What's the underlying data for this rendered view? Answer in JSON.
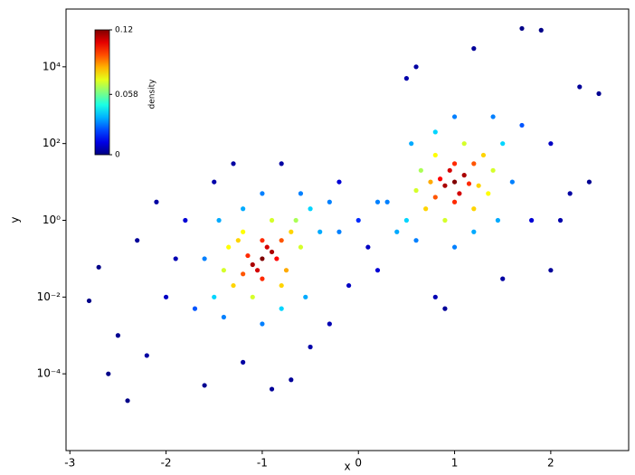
{
  "chart_data": {
    "type": "scatter",
    "x_label": "x",
    "y_label": "y",
    "x": [
      -1,
      -0.9,
      -1.1,
      -0.95,
      -1.05,
      -0.85,
      -1.15,
      -0.8,
      -1.2,
      -1,
      -1,
      -0.7,
      -1.3,
      -0.6,
      -1.4,
      -0.8,
      -1.2,
      -0.9,
      -1.1,
      -0.65,
      -1.35,
      -0.75,
      -1.25,
      -0.5,
      -1.5,
      -0.4,
      -1.6,
      -1.2,
      -0.8,
      -0.3,
      -1.7,
      -1.45,
      -0.55,
      -1,
      -1,
      -0.6,
      -1.4,
      -2,
      -0.2,
      -2.5,
      -1.8,
      -0.5,
      -2.8,
      -2.4,
      -1.5,
      -0.7,
      -2.2,
      -1.2,
      -2.7,
      -1.9,
      -0.3,
      -1.6,
      -0.8,
      -2.6,
      -0.1,
      -1.3,
      -2.1,
      -0.9,
      -2.3,
      1,
      0.9,
      1.1,
      0.95,
      1.05,
      0.85,
      1.15,
      0.8,
      1.2,
      1,
      1,
      0.7,
      1.3,
      0.6,
      1.4,
      0.8,
      1.2,
      0.9,
      1.1,
      0.65,
      1.35,
      0.75,
      1.25,
      0.5,
      1.5,
      0.4,
      1.6,
      1.2,
      0.8,
      0.3,
      1.7,
      1.45,
      0.55,
      1,
      1,
      0.6,
      1.4,
      2,
      0.2,
      2.5,
      1.8,
      0.5,
      1.7,
      1.9,
      2.2,
      1.2,
      2.4,
      0.6,
      0.8,
      2,
      2.3,
      0.1,
      1.5,
      2.1,
      0.9,
      0,
      0.2,
      -0.2
    ],
    "y": [
      0.1,
      0.15,
      0.07,
      0.2,
      0.05,
      0.1,
      0.12,
      0.3,
      0.04,
      0.3,
      0.03,
      0.5,
      0.02,
      0.2,
      0.05,
      0.02,
      0.5,
      1,
      0.01,
      1,
      0.2,
      0.05,
      0.3,
      2,
      0.01,
      0.5,
      0.1,
      2,
      0.005,
      3,
      0.005,
      1,
      0.01,
      5,
      0.002,
      5,
      0.003,
      0.01,
      10,
      0.001,
      1,
      0.0005,
      0.008,
      2e-05,
      10,
      7e-05,
      0.0003,
      0.0002,
      0.06,
      0.1,
      0.002,
      5e-05,
      30,
      0.0001,
      0.02,
      30,
      3,
      4e-05,
      0.3,
      10,
      8,
      15,
      20,
      5,
      12,
      9,
      4,
      30,
      30,
      3,
      2,
      50,
      6,
      20,
      50,
      2,
      1,
      100,
      20,
      5,
      10,
      8,
      1,
      100,
      0.5,
      10,
      0.5,
      200,
      3,
      300,
      1,
      100,
      0.2,
      500,
      0.3,
      500,
      100,
      0.05,
      2000,
      1,
      5000,
      100000,
      90000,
      5,
      30000,
      10,
      10000,
      0.01,
      0.05,
      3000,
      0.2,
      0.03,
      1,
      0.005,
      1,
      3,
      0.5
    ],
    "density": [
      0.12,
      0.115,
      0.115,
      0.11,
      0.11,
      0.105,
      0.1,
      0.095,
      0.095,
      0.1,
      0.1,
      0.08,
      0.08,
      0.07,
      0.07,
      0.08,
      0.075,
      0.07,
      0.07,
      0.065,
      0.075,
      0.085,
      0.08,
      0.04,
      0.04,
      0.035,
      0.03,
      0.035,
      0.04,
      0.03,
      0.025,
      0.035,
      0.035,
      0.03,
      0.03,
      0.03,
      0.03,
      0.008,
      0.01,
      0.002,
      0.01,
      0.005,
      0.001,
      0.001,
      0.005,
      0.003,
      0.004,
      0.004,
      0.001,
      0.006,
      0.006,
      0.002,
      0.004,
      0.001,
      0.008,
      0.004,
      0.004,
      0.003,
      0.003,
      0.12,
      0.115,
      0.115,
      0.11,
      0.11,
      0.105,
      0.1,
      0.095,
      0.095,
      0.1,
      0.1,
      0.08,
      0.08,
      0.07,
      0.07,
      0.075,
      0.08,
      0.07,
      0.07,
      0.065,
      0.075,
      0.085,
      0.08,
      0.04,
      0.04,
      0.035,
      0.03,
      0.035,
      0.04,
      0.03,
      0.025,
      0.035,
      0.035,
      0.03,
      0.03,
      0.03,
      0.03,
      0.008,
      0.01,
      0.002,
      0.01,
      0.005,
      0.001,
      0.001,
      0.004,
      0.003,
      0.002,
      0.004,
      0.006,
      0.003,
      0.003,
      0.008,
      0.004,
      0.005,
      0.003,
      0.02,
      0.03,
      0.03
    ],
    "colormap": "jet",
    "xlim": [
      -3.04,
      2.81
    ],
    "xticks": [
      -3,
      -2,
      -1,
      0,
      1,
      2
    ],
    "ylim": [
      1e-06,
      320000
    ],
    "y_scale": "log",
    "yticks": [
      {
        "value": 0.0001,
        "label": "10⁻⁴"
      },
      {
        "value": 0.01,
        "label": "10⁻²"
      },
      {
        "value": 1,
        "label": "10⁰"
      },
      {
        "value": 100,
        "label": "10²"
      },
      {
        "value": 10000,
        "label": "10⁴"
      }
    ],
    "colorbar": {
      "label": "density",
      "lim": [
        0,
        0.12
      ],
      "ticks": [
        0,
        0.058,
        0.12
      ]
    }
  }
}
